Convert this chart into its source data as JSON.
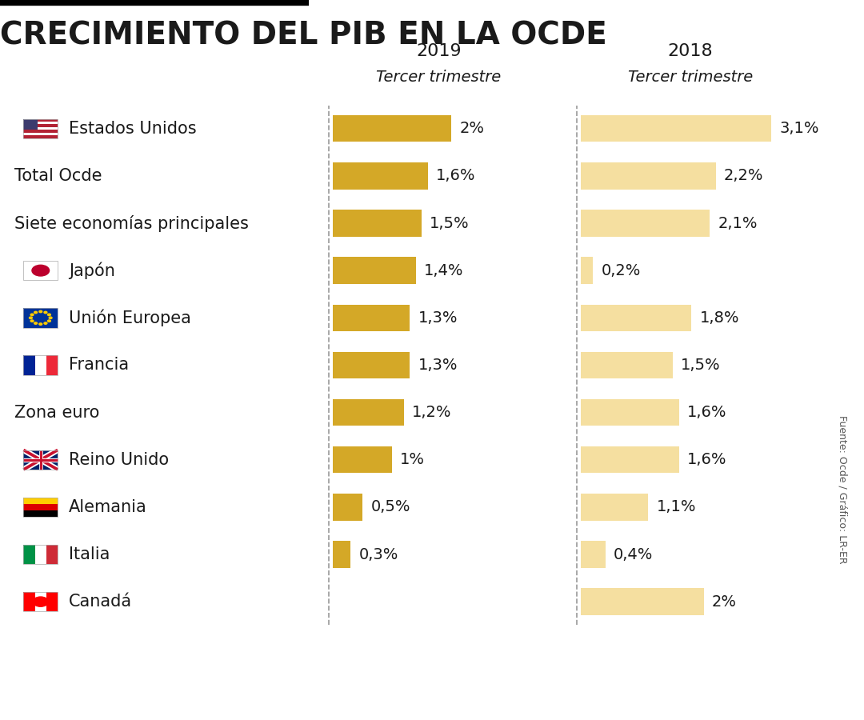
{
  "title": "CRECIMIENTO DEL PIB EN LA OCDE",
  "col2019_label": "2019",
  "col2019_sublabel": "Tercer trimestre",
  "col2018_label": "2018",
  "col2018_sublabel": "Tercer trimestre",
  "source": "Fuente: Ocde / Gráfico: LR-ER",
  "countries": [
    "Estados Unidos",
    "Total Ocde",
    "Siete economías principales",
    "Japón",
    "Unión Europea",
    "Francia",
    "Zona euro",
    "Reino Unido",
    "Alemania",
    "Italia",
    "Canadá"
  ],
  "has_flag": [
    true,
    false,
    false,
    true,
    true,
    true,
    false,
    true,
    true,
    true,
    true
  ],
  "values_2019": [
    2.0,
    1.6,
    1.5,
    1.4,
    1.3,
    1.3,
    1.2,
    1.0,
    0.5,
    0.3,
    null
  ],
  "values_2018": [
    3.1,
    2.2,
    2.1,
    0.2,
    1.8,
    1.5,
    1.6,
    1.6,
    1.1,
    0.4,
    2.0
  ],
  "labels_2019": [
    "2%",
    "1,6%",
    "1,5%",
    "1,4%",
    "1,3%",
    "1,3%",
    "1,2%",
    "1%",
    "0,5%",
    "0,3%",
    ""
  ],
  "labels_2018": [
    "3,1%",
    "2,2%",
    "2,1%",
    "0,2%",
    "1,8%",
    "1,5%",
    "1,6%",
    "1,6%",
    "1,1%",
    "0,4%",
    "2%"
  ],
  "bar_color_2019": "#D4A827",
  "bar_color_2018": "#F5DFA0",
  "bg_color": "#FFFFFF",
  "text_color": "#1a1a1a",
  "title_fontsize": 28,
  "label_fontsize": 14,
  "country_fontsize": 15,
  "header_year_fontsize": 16,
  "header_sub_fontsize": 14,
  "source_fontsize": 9,
  "max_val": 3.5
}
